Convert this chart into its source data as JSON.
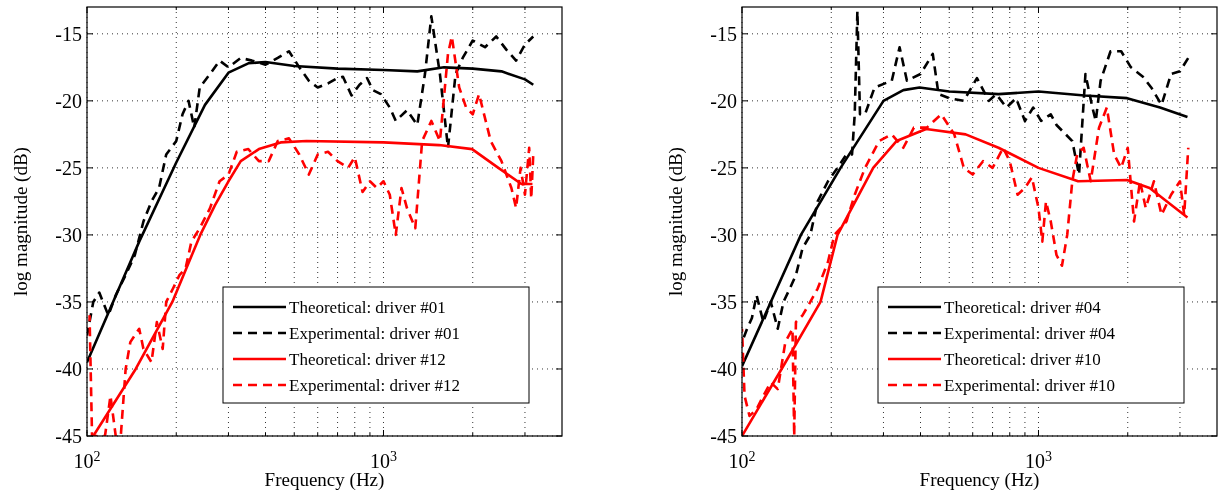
{
  "chart_data": [
    {
      "type": "line",
      "xlabel": "Frequency (Hz)",
      "ylabel": "log magnitude (dB)",
      "log": "x",
      "grid": true,
      "legend": "bottom right",
      "xlim": [
        100,
        4000
      ],
      "ylim": [
        -45,
        -13
      ],
      "xticks": [
        {
          "value": 100,
          "label": "10$^{2}$"
        },
        {
          "value": 200,
          "label": null
        },
        {
          "value": 300,
          "label": null
        },
        {
          "value": 400,
          "label": null
        },
        {
          "value": 500,
          "label": null
        },
        {
          "value": 600,
          "label": null
        },
        {
          "value": 700,
          "label": null
        },
        {
          "value": 800,
          "label": null
        },
        {
          "value": 900,
          "label": null
        },
        {
          "value": 1000,
          "label": "10$^{3}$"
        },
        {
          "value": 2000,
          "label": null
        },
        {
          "value": 3000,
          "label": null
        }
      ],
      "yticks": [
        -45,
        -40,
        -35,
        -30,
        -25,
        -20,
        -15
      ],
      "series": [
        {
          "name": "Theoretical: driver #01",
          "color": "#000000",
          "line_style": "solid",
          "x": [
            100,
            150,
            200,
            250,
            300,
            350,
            400,
            500,
            700,
            1000,
            1300,
            1600,
            2000,
            2500,
            3000,
            3200
          ],
          "values": [
            -39.5,
            -30.5,
            -24.6,
            -20.3,
            -17.9,
            -17.2,
            -17.1,
            -17.4,
            -17.6,
            -17.7,
            -17.8,
            -17.5,
            -17.6,
            -17.8,
            -18.4,
            -18.8
          ]
        },
        {
          "name": "Experimental: driver #01",
          "color": "#000000",
          "line_style": "dashed",
          "x": [
            100,
            105,
            110,
            118,
            125,
            135,
            145,
            155,
            165,
            175,
            185,
            200,
            210,
            220,
            230,
            240,
            260,
            280,
            300,
            330,
            360,
            400,
            440,
            480,
            520,
            560,
            600,
            650,
            700,
            730,
            780,
            830,
            880,
            920,
            980,
            1050,
            1100,
            1200,
            1300,
            1380,
            1450,
            1550,
            1650,
            1750,
            1850,
            2000,
            2200,
            2400,
            2600,
            2800,
            3000,
            3200
          ],
          "values": [
            -37.5,
            -35,
            -34.3,
            -36,
            -34.5,
            -33,
            -31.5,
            -29,
            -27.5,
            -26.5,
            -24,
            -23,
            -21,
            -20,
            -22,
            -19,
            -18,
            -17,
            -17.5,
            -16.8,
            -17,
            -17.3,
            -16.8,
            -16.3,
            -17.5,
            -18.5,
            -19,
            -18.7,
            -18.3,
            -18.2,
            -19.6,
            -18.8,
            -18.3,
            -19.2,
            -19.5,
            -20.5,
            -21.5,
            -20.7,
            -21.8,
            -18,
            -13.7,
            -18,
            -23.5,
            -18,
            -16.8,
            -15.5,
            -16,
            -15.2,
            -16.2,
            -17,
            -15.8,
            -15.2
          ]
        },
        {
          "name": "Theoretical: driver #12",
          "color": "#ff0000",
          "line_style": "solid",
          "x": [
            105,
            146,
            194,
            241,
            270,
            300,
            330,
            380,
            450,
            550,
            1000,
            1540,
            1990,
            2440,
            2920,
            3180
          ],
          "values": [
            -45,
            -40,
            -35,
            -30,
            -27.8,
            -26,
            -24.5,
            -23.6,
            -23.1,
            -23,
            -23.1,
            -23.3,
            -23.6,
            -25,
            -26.2,
            -26.2
          ]
        },
        {
          "name": "Experimental: driver #12",
          "color": "#ff0000",
          "line_style": "dashed",
          "x": [
            102,
            104,
            115,
            120,
            125,
            130,
            135,
            140,
            150,
            155,
            165,
            172,
            180,
            185,
            195,
            205,
            215,
            225,
            240,
            260,
            280,
            300,
            320,
            350,
            380,
            410,
            440,
            480,
            520,
            560,
            600,
            650,
            700,
            760,
            800,
            850,
            900,
            950,
            1000,
            1050,
            1100,
            1150,
            1200,
            1280,
            1350,
            1450,
            1550,
            1650,
            1700,
            1800,
            1900,
            2000,
            2100,
            2300,
            2500,
            2700,
            2800,
            2900,
            3000,
            3100,
            3150,
            3200
          ],
          "values": [
            -36,
            -45,
            -45,
            -42,
            -45,
            -45,
            -40,
            -38,
            -37,
            -38.5,
            -39.5,
            -36.5,
            -38.5,
            -35,
            -34,
            -33,
            -32.5,
            -30.5,
            -29.5,
            -28,
            -26,
            -25.5,
            -23.8,
            -23.6,
            -24.5,
            -24.5,
            -23,
            -22.8,
            -24,
            -25.5,
            -24,
            -23.8,
            -24.5,
            -25,
            -24.2,
            -26.8,
            -26,
            -26.5,
            -26,
            -27,
            -30,
            -26.5,
            -28,
            -29.5,
            -23,
            -21.5,
            -23,
            -16.5,
            -15.2,
            -19,
            -20.5,
            -21,
            -19.5,
            -23,
            -24.5,
            -26.5,
            -28,
            -25,
            -27,
            -23.5,
            -27.3,
            -24
          ]
        }
      ]
    },
    {
      "type": "line",
      "xlabel": "Frequency (Hz)",
      "ylabel": "log magnitude (dB)",
      "log": "x",
      "grid": true,
      "legend": "bottom right",
      "xlim": [
        100,
        4000
      ],
      "ylim": [
        -45,
        -13
      ],
      "xticks": [
        {
          "value": 100,
          "label": "10$^{2}$"
        },
        {
          "value": 200,
          "label": null
        },
        {
          "value": 300,
          "label": null
        },
        {
          "value": 400,
          "label": null
        },
        {
          "value": 500,
          "label": null
        },
        {
          "value": 600,
          "label": null
        },
        {
          "value": 700,
          "label": null
        },
        {
          "value": 800,
          "label": null
        },
        {
          "value": 900,
          "label": null
        },
        {
          "value": 1000,
          "label": "10$^{3}$"
        },
        {
          "value": 2000,
          "label": null
        },
        {
          "value": 3000,
          "label": null
        }
      ],
      "yticks": [
        -45,
        -40,
        -35,
        -30,
        -25,
        -20,
        -15
      ],
      "series": [
        {
          "name": "Theoretical: driver #04",
          "color": "#000000",
          "line_style": "solid",
          "x": [
            100,
            158,
            215,
            300,
            350,
            397,
            500,
            733,
            1000,
            1430,
            1990,
            2570,
            3180
          ],
          "values": [
            -39.8,
            -30,
            -25,
            -20,
            -19.2,
            -19,
            -19.3,
            -19.5,
            -19.3,
            -19.6,
            -19.8,
            -20.5,
            -21.2
          ]
        },
        {
          "name": "Experimental: driver #04",
          "color": "#000000",
          "line_style": "dashed",
          "x": [
            100,
            104,
            108,
            112,
            118,
            125,
            132,
            138,
            145,
            152,
            160,
            170,
            180,
            195,
            210,
            225,
            235,
            240,
            245,
            250,
            260,
            280,
            320,
            340,
            360,
            400,
            440,
            460,
            500,
            560,
            620,
            680,
            720,
            780,
            840,
            900,
            960,
            1020,
            1100,
            1150,
            1300,
            1370,
            1440,
            1520,
            1560,
            1620,
            1750,
            1900,
            2050,
            2250,
            2400,
            2600,
            2800,
            3000,
            3200
          ],
          "values": [
            -38,
            -37,
            -36.2,
            -34.5,
            -36.5,
            -35,
            -37,
            -35,
            -34,
            -33,
            -31,
            -30,
            -27.5,
            -26,
            -25,
            -24,
            -24,
            -21,
            -13.3,
            -21,
            -21,
            -19,
            -18.5,
            -16,
            -18.5,
            -18,
            -16.5,
            -19.5,
            -19.8,
            -20,
            -18.3,
            -20,
            -19.5,
            -20.5,
            -19.8,
            -21.5,
            -20.5,
            -21.5,
            -21,
            -21.8,
            -23,
            -25.5,
            -18,
            -20.5,
            -21.5,
            -18.5,
            -16.3,
            -16.3,
            -17.5,
            -18.2,
            -19,
            -20.3,
            -18,
            -17.8,
            -16.8
          ]
        },
        {
          "name": "Theoretical: driver #10",
          "color": "#ff0000",
          "line_style": "solid",
          "x": [
            100,
            136,
            184,
            210,
            277,
            332,
            418,
            568,
            733,
            1000,
            1360,
            1990,
            2370,
            3180
          ],
          "values": [
            -45,
            -40,
            -35,
            -30,
            -25,
            -23,
            -22.1,
            -22.5,
            -23.5,
            -25,
            -26,
            -25.9,
            -26.5,
            -28.7
          ]
        },
        {
          "name": "Experimental: driver #10",
          "color": "#ff0000",
          "line_style": "dashed",
          "x": [
            100,
            102,
            106,
            112,
            118,
            125,
            132,
            140,
            148,
            150,
            152,
            160,
            170,
            180,
            195,
            205,
            225,
            240,
            260,
            290,
            320,
            350,
            380,
            420,
            470,
            520,
            560,
            600,
            650,
            700,
            760,
            800,
            850,
            900,
            950,
            1000,
            1030,
            1060,
            1100,
            1150,
            1200,
            1250,
            1300,
            1350,
            1420,
            1500,
            1600,
            1700,
            1800,
            1900,
            2000,
            2100,
            2200,
            2300,
            2450,
            2600,
            2800,
            3000,
            3100,
            3200
          ],
          "values": [
            -37,
            -42,
            -43.5,
            -43,
            -42,
            -41,
            -41.5,
            -38,
            -37,
            -45,
            -36.5,
            -36,
            -35,
            -34,
            -32,
            -30,
            -29,
            -27,
            -25,
            -23,
            -22.5,
            -23.5,
            -22,
            -22,
            -21,
            -22.5,
            -25,
            -25.5,
            -24.5,
            -25,
            -23.5,
            -24.5,
            -27,
            -26.5,
            -25.7,
            -28,
            -30.5,
            -27.5,
            -29,
            -31.5,
            -32.3,
            -30,
            -26,
            -24,
            -23.5,
            -26,
            -22,
            -20.5,
            -24,
            -25,
            -23.5,
            -29,
            -26,
            -28,
            -26,
            -28.5,
            -27,
            -26,
            -28.5,
            -23.5
          ]
        }
      ]
    }
  ]
}
